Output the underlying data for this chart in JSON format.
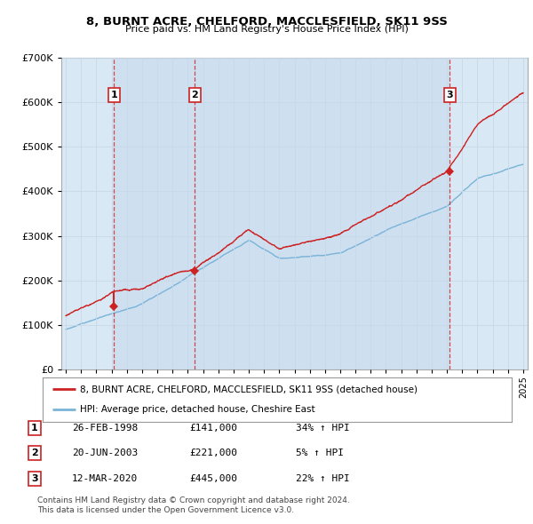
{
  "title1": "8, BURNT ACRE, CHELFORD, MACCLESFIELD, SK11 9SS",
  "title2": "Price paid vs. HM Land Registry's House Price Index (HPI)",
  "red_label": "8, BURNT ACRE, CHELFORD, MACCLESFIELD, SK11 9SS (detached house)",
  "blue_label": "HPI: Average price, detached house, Cheshire East",
  "footer1": "Contains HM Land Registry data © Crown copyright and database right 2024.",
  "footer2": "This data is licensed under the Open Government Licence v3.0.",
  "sales": [
    {
      "num": 1,
      "date_x": 1998.15,
      "price": 141000,
      "label": "26-FEB-1998",
      "pct": "34% ↑ HPI"
    },
    {
      "num": 2,
      "date_x": 2003.47,
      "price": 221000,
      "label": "20-JUN-2003",
      "pct": "5% ↑ HPI"
    },
    {
      "num": 3,
      "date_x": 2020.19,
      "price": 445000,
      "label": "12-MAR-2020",
      "pct": "22% ↑ HPI"
    }
  ],
  "hpi_color": "#7ab4d8",
  "price_color": "#cc2222",
  "marker_box_color": "#cc2222",
  "grid_color": "#c8d8e8",
  "background_color": "#d8e8f4",
  "ylim": [
    0,
    700000
  ],
  "xlim_start": 1994.7,
  "xlim_end": 2025.3,
  "yticks": [
    0,
    100000,
    200000,
    300000,
    400000,
    500000,
    600000,
    700000
  ]
}
